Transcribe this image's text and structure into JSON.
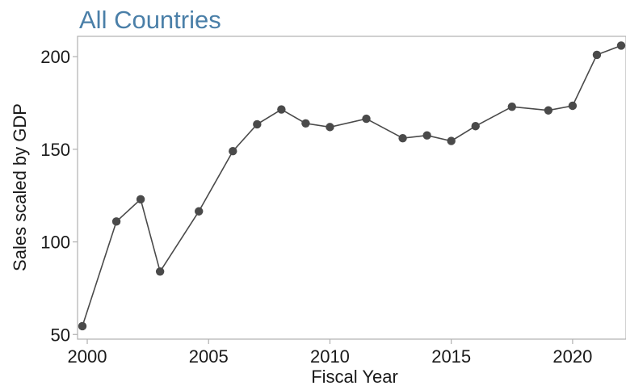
{
  "chart_data": {
    "type": "line",
    "title": "All Countries",
    "xlabel": "Fiscal Year",
    "ylabel": "Sales scaled by GDP",
    "xlim": [
      1999.6,
      2022.2
    ],
    "ylim": [
      47.5,
      211
    ],
    "xticks": [
      2000,
      2005,
      2010,
      2015,
      2020
    ],
    "yticks": [
      50,
      100,
      150,
      200
    ],
    "grid": false,
    "series": [
      {
        "x": [
          1999.8,
          2001.2,
          2002.2,
          2003.0,
          2004.6,
          2006.0,
          2007.0,
          2008.0,
          2009.0,
          2010.0,
          2011.5,
          2013.0,
          2014.0,
          2015.0,
          2016.0,
          2017.5,
          2019.0,
          2020.0,
          2021.0,
          2022.0
        ],
        "y": [
          54.5,
          111,
          123,
          84,
          116.5,
          149,
          163.5,
          171.5,
          164,
          162,
          166.5,
          156,
          157.5,
          154.5,
          162.5,
          173,
          171,
          173.5,
          201,
          206
        ]
      }
    ],
    "colors": {
      "title": "#4a7fa8",
      "line": "#4a4a4a",
      "axis": "#b0b0b0",
      "text": "#1a1a1a"
    }
  }
}
